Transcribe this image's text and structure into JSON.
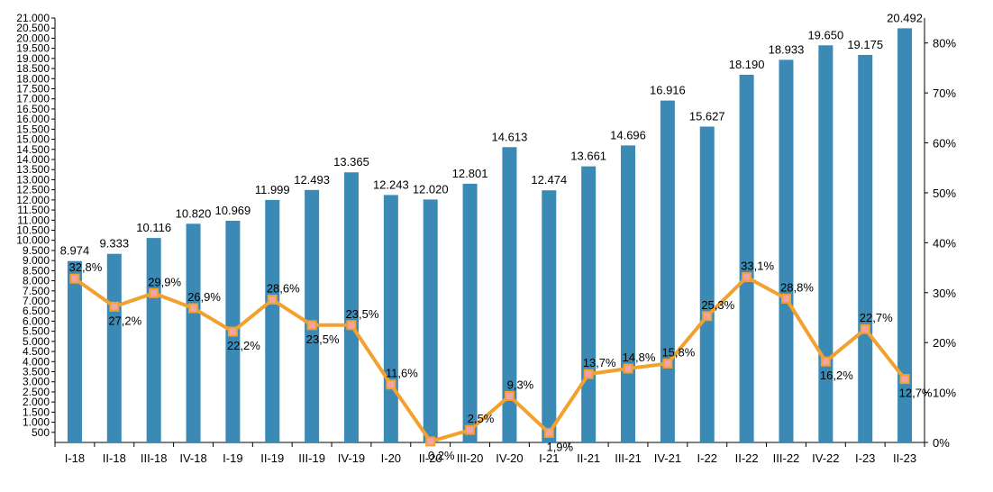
{
  "chart_data": {
    "type": "bar",
    "categories": [
      "I-18",
      "II-18",
      "III-18",
      "IV-18",
      "I-19",
      "II-19",
      "III-19",
      "IV-19",
      "I-20",
      "II-20",
      "III-20",
      "IV-20",
      "I-21",
      "II-21",
      "III-21",
      "IV-21",
      "I-22",
      "II-22",
      "III-22",
      "IV-22",
      "I-23",
      "II-23"
    ],
    "series": [
      {
        "type": "bar",
        "axis": "left",
        "color": "#3a8ab5",
        "values": [
          8974,
          9333,
          10116,
          10820,
          10969,
          11999,
          12493,
          13365,
          12243,
          12020,
          12801,
          14613,
          12474,
          13661,
          14696,
          16916,
          15627,
          18190,
          18933,
          19650,
          19175,
          20492
        ],
        "labels": [
          "8.974",
          "9.333",
          "10.116",
          "10.820",
          "10.969",
          "11.999",
          "12.493",
          "13.365",
          "12.243",
          "12.020",
          "12.801",
          "14.613",
          "12.474",
          "13.661",
          "14.696",
          "16.916",
          "15.627",
          "18.190",
          "18.933",
          "19.650",
          "19.175",
          "20.492"
        ]
      },
      {
        "type": "line",
        "axis": "right",
        "color": "#f2a12e",
        "values": [
          32.8,
          27.2,
          29.9,
          26.9,
          22.2,
          28.6,
          23.5,
          23.5,
          11.6,
          0.2,
          2.5,
          9.3,
          1.9,
          13.7,
          14.8,
          15.8,
          25.3,
          33.1,
          28.8,
          16.2,
          22.7,
          12.7
        ],
        "labels": [
          "32,8%",
          "27,2%",
          "29,9%",
          "26,9%",
          "22,2%",
          "28,6%",
          "23,5%",
          "23,5%",
          "11,6%",
          "0,2%",
          "2,5%",
          "9,3%",
          "1,9%",
          "13,7%",
          "14,8%",
          "15,8%",
          "25,3%",
          "33,1%",
          "28,8%",
          "16,2%",
          "22,7%",
          "12,7%"
        ]
      }
    ],
    "left_axis": {
      "ylim": [
        0,
        21000
      ],
      "ticks": [
        "500",
        "1.000",
        "1.500",
        "2.000",
        "2.500",
        "3.000",
        "3.500",
        "4.000",
        "4.500",
        "5.000",
        "5.500",
        "6.000",
        "6.500",
        "7.000",
        "7.500",
        "8.000",
        "8.500",
        "9.000",
        "9.500",
        "10.000",
        "10.500",
        "11.000",
        "11.500",
        "12.000",
        "12.500",
        "13.000",
        "13.500",
        "14.000",
        "14.500",
        "15.000",
        "15.500",
        "16.000",
        "16.500",
        "17.000",
        "17.500",
        "18.000",
        "18.500",
        "19.000",
        "19.500",
        "20.000",
        "20.500",
        "21.000"
      ]
    },
    "right_axis": {
      "ylim": [
        0,
        85
      ],
      "ticks": [
        "0%",
        "10%",
        "20%",
        "30%",
        "40%",
        "50%",
        "60%",
        "70%",
        "80%"
      ]
    },
    "grid": false
  }
}
